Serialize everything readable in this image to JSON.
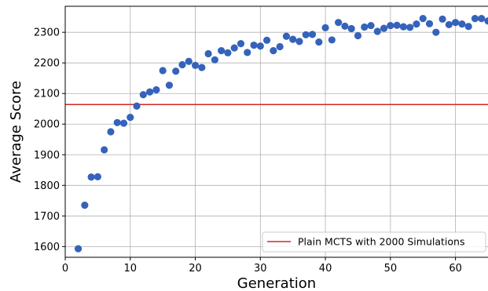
{
  "chart_data": {
    "type": "scatter",
    "title": "",
    "xlabel": "Generation",
    "ylabel": "Average Score",
    "xlim": [
      0,
      65
    ],
    "ylim": [
      1565,
      2385
    ],
    "x_ticks": [
      0,
      10,
      20,
      30,
      40,
      50,
      60
    ],
    "y_ticks": [
      1600,
      1700,
      1800,
      1900,
      2000,
      2100,
      2200,
      2300
    ],
    "grid": true,
    "legend_position": "lower-right",
    "colors": {
      "points": "#3563bb",
      "baseline": "#d62728",
      "grid": "#b0b0b0"
    },
    "series": [
      {
        "name": "",
        "x": [
          2,
          3,
          4,
          5,
          6,
          7,
          8,
          9,
          10,
          11,
          12,
          13,
          14,
          15,
          16,
          17,
          18,
          19,
          20,
          21,
          22,
          23,
          24,
          25,
          26,
          27,
          28,
          29,
          30,
          31,
          32,
          33,
          34,
          35,
          36,
          37,
          38,
          39,
          40,
          41,
          42,
          43,
          44,
          45,
          46,
          47,
          48,
          49,
          50,
          51,
          52,
          53,
          54,
          55,
          56,
          57,
          58,
          59,
          60,
          61,
          62,
          63,
          64,
          65
        ],
        "y": [
          1593,
          1735,
          1827,
          1828,
          1916,
          1975,
          2005,
          2003,
          2022,
          2059,
          2096,
          2105,
          2112,
          2175,
          2127,
          2173,
          2194,
          2205,
          2192,
          2185,
          2230,
          2210,
          2240,
          2233,
          2249,
          2263,
          2234,
          2258,
          2255,
          2274,
          2240,
          2253,
          2287,
          2277,
          2270,
          2292,
          2293,
          2268,
          2315,
          2275,
          2332,
          2320,
          2312,
          2289,
          2317,
          2322,
          2303,
          2313,
          2322,
          2323,
          2318,
          2316,
          2327,
          2345,
          2328,
          2300,
          2343,
          2325,
          2332,
          2327,
          2319,
          2345,
          2345,
          2337
        ]
      }
    ],
    "reference_line": {
      "name": "Plain MCTS with 2000 Simulations",
      "y": 2064
    }
  }
}
